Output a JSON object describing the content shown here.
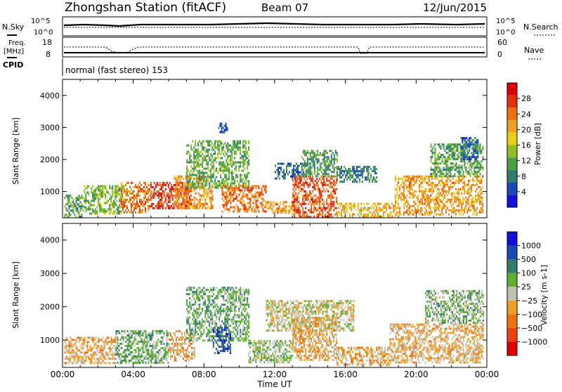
{
  "header": {
    "station": "Zhongshan Station (fitACF)",
    "beam": "Beam 07",
    "date": "12/Jun/2015"
  },
  "top_panel": {
    "left_label": "N.Sky",
    "right_label": "N.Search",
    "left_ticks": [
      "10^5",
      "10^0"
    ],
    "right_ticks": [
      "10^5",
      "10^0"
    ]
  },
  "freq_panel": {
    "left_label_1": "Freq.",
    "left_label_2": "[MHz]",
    "left_ticks": [
      "18",
      "8"
    ],
    "right_label": "Nave",
    "right_ticks": [
      "60",
      "0"
    ]
  },
  "cpid": {
    "label": "CPID",
    "mode_text": "normal (fast stereo) 153"
  },
  "chart_data": [
    {
      "type": "heatmap",
      "title": "",
      "xlabel": "Time UT",
      "ylabel": "Slant Range [km]",
      "xlim": [
        "00:00",
        "24:00"
      ],
      "ylim": [
        180,
        4500
      ],
      "x_ticks": [
        "00:00",
        "04:00",
        "08:00",
        "12:00",
        "16:00",
        "20:00",
        "00:00"
      ],
      "y_ticks": [
        1000,
        2000,
        3000,
        4000
      ],
      "colorbar": {
        "label": "Power [dB]",
        "ticks": [
          "28",
          "24",
          "20",
          "16",
          "12",
          "8",
          "4"
        ],
        "range": [
          0,
          30
        ],
        "colors": [
          "#1010e0",
          "#1a48b8",
          "#2f7d6a",
          "#4aa040",
          "#90c020",
          "#e8d010",
          "#f0a020",
          "#f07010",
          "#e83010",
          "#e00000"
        ]
      },
      "regions": [
        {
          "time_start": 0.1,
          "time_end": 1.2,
          "range_min": 200,
          "range_max": 900,
          "value": 10
        },
        {
          "time_start": 1.2,
          "time_end": 3.5,
          "range_min": 300,
          "range_max": 1200,
          "value": 12
        },
        {
          "time_start": 3.3,
          "time_end": 5.0,
          "range_min": 350,
          "range_max": 1300,
          "value": 22
        },
        {
          "time_start": 5.0,
          "time_end": 7.3,
          "range_min": 450,
          "range_max": 1300,
          "value": 26
        },
        {
          "time_start": 6.3,
          "time_end": 8.5,
          "range_min": 500,
          "range_max": 1500,
          "value": 20
        },
        {
          "time_start": 7.0,
          "time_end": 10.5,
          "range_min": 1100,
          "range_max": 2600,
          "value": 11
        },
        {
          "time_start": 8.8,
          "time_end": 9.3,
          "range_min": 2850,
          "range_max": 3150,
          "value": 6
        },
        {
          "time_start": 9.0,
          "time_end": 11.5,
          "range_min": 400,
          "range_max": 1200,
          "value": 22
        },
        {
          "time_start": 11.5,
          "time_end": 13.0,
          "range_min": 350,
          "range_max": 700,
          "value": 20
        },
        {
          "time_start": 12.0,
          "time_end": 13.8,
          "range_min": 1400,
          "range_max": 1900,
          "value": 6
        },
        {
          "time_start": 13.0,
          "time_end": 15.5,
          "range_min": 250,
          "range_max": 1500,
          "value": 24
        },
        {
          "time_start": 13.5,
          "time_end": 15.5,
          "range_min": 1500,
          "range_max": 2300,
          "value": 10
        },
        {
          "time_start": 15.5,
          "time_end": 17.8,
          "range_min": 1300,
          "range_max": 1800,
          "value": 8
        },
        {
          "time_start": 15.5,
          "time_end": 18.8,
          "range_min": 250,
          "range_max": 650,
          "value": 18
        },
        {
          "time_start": 18.8,
          "time_end": 23.8,
          "range_min": 300,
          "range_max": 1500,
          "value": 20
        },
        {
          "time_start": 20.8,
          "time_end": 23.8,
          "range_min": 1500,
          "range_max": 2500,
          "value": 10
        },
        {
          "time_start": 22.5,
          "time_end": 23.5,
          "range_min": 2000,
          "range_max": 2700,
          "value": 6
        }
      ]
    },
    {
      "type": "heatmap",
      "title": "",
      "xlabel": "Time UT",
      "ylabel": "Slant Range [km]",
      "xlim": [
        "00:00",
        "24:00"
      ],
      "ylim": [
        180,
        4500
      ],
      "x_ticks": [
        "00:00",
        "04:00",
        "08:00",
        "12:00",
        "16:00",
        "20:00",
        "00:00"
      ],
      "y_ticks": [
        1000,
        2000,
        3000,
        4000
      ],
      "colorbar": {
        "label": "Velocity [m s-1]",
        "ticks": [
          "1000",
          "500",
          "100",
          "25",
          "−25",
          "−100",
          "−500",
          "−1000"
        ],
        "range": [
          -1250,
          1250
        ],
        "colors": [
          "#e00000",
          "#f04010",
          "#f07010",
          "#f0a020",
          "#c0c0b0",
          "#60b030",
          "#2f7d6a",
          "#1a48b8",
          "#1010e0"
        ]
      },
      "regions": [
        {
          "time_start": 0.1,
          "time_end": 3.0,
          "range_min": 300,
          "range_max": 1100,
          "value": -250
        },
        {
          "time_start": 3.0,
          "time_end": 6.0,
          "range_min": 350,
          "range_max": 1300,
          "value": 300
        },
        {
          "time_start": 6.0,
          "time_end": 7.5,
          "range_min": 400,
          "range_max": 1300,
          "value": -250
        },
        {
          "time_start": 7.0,
          "time_end": 10.5,
          "range_min": 1000,
          "range_max": 2600,
          "value": 300
        },
        {
          "time_start": 8.5,
          "time_end": 9.5,
          "range_min": 600,
          "range_max": 1400,
          "value": 800
        },
        {
          "time_start": 10.5,
          "time_end": 13.0,
          "range_min": 350,
          "range_max": 1000,
          "value": 150
        },
        {
          "time_start": 11.5,
          "time_end": 16.5,
          "range_min": 1300,
          "range_max": 2200,
          "value": 0
        },
        {
          "time_start": 13.0,
          "time_end": 15.5,
          "range_min": 400,
          "range_max": 1700,
          "value": -250
        },
        {
          "time_start": 15.5,
          "time_end": 18.5,
          "range_min": 250,
          "range_max": 800,
          "value": -300
        },
        {
          "time_start": 18.5,
          "time_end": 23.8,
          "range_min": 300,
          "range_max": 1500,
          "value": -200
        },
        {
          "time_start": 20.5,
          "time_end": 23.8,
          "range_min": 1500,
          "range_max": 2500,
          "value": 200
        }
      ]
    }
  ]
}
